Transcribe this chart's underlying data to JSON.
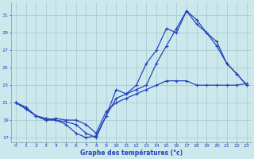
{
  "title": "Graphe des températures (°c)",
  "background_color": "#cde8ec",
  "grid_color": "#a8cdd4",
  "line_color": "#2244bb",
  "xlim": [
    -0.5,
    23.5
  ],
  "ylim": [
    16.5,
    32.5
  ],
  "yticks": [
    17,
    19,
    21,
    23,
    25,
    27,
    29,
    31
  ],
  "xticks": [
    0,
    1,
    2,
    3,
    4,
    5,
    6,
    7,
    8,
    9,
    10,
    11,
    12,
    13,
    14,
    15,
    16,
    17,
    18,
    19,
    20,
    21,
    22,
    23
  ],
  "line1_x": [
    0,
    1,
    2,
    3,
    4,
    5,
    6,
    7,
    8,
    9,
    10,
    11,
    12,
    13,
    14,
    15,
    16,
    17,
    18,
    19,
    20,
    21,
    22,
    23
  ],
  "line1_y": [
    21.0,
    20.3,
    19.5,
    19.0,
    19.0,
    18.5,
    17.5,
    17.0,
    17.2,
    19.5,
    22.5,
    22.0,
    23.0,
    25.5,
    27.0,
    29.5,
    29.0,
    31.5,
    30.5,
    29.0,
    27.5,
    25.5,
    24.3,
    23.0
  ],
  "line2_x": [
    0,
    1,
    2,
    3,
    4,
    5,
    6,
    7,
    8,
    9,
    10,
    11,
    12,
    13,
    14,
    15,
    16,
    17,
    18,
    19,
    20,
    21,
    22,
    23
  ],
  "line2_y": [
    21.0,
    20.3,
    19.5,
    19.2,
    19.0,
    18.8,
    18.5,
    17.5,
    17.0,
    19.5,
    21.5,
    22.0,
    22.5,
    23.0,
    25.5,
    27.5,
    29.5,
    31.5,
    30.0,
    29.0,
    28.0,
    25.5,
    24.3,
    23.0
  ],
  "line3_x": [
    0,
    1,
    2,
    3,
    4,
    5,
    6,
    7,
    8,
    9,
    10,
    11,
    12,
    13,
    14,
    15,
    16,
    17,
    18,
    19,
    20,
    21,
    22,
    23
  ],
  "line3_y": [
    21.0,
    20.5,
    19.5,
    19.0,
    19.2,
    19.0,
    19.0,
    18.5,
    17.5,
    20.0,
    21.0,
    21.5,
    22.0,
    22.5,
    23.0,
    23.5,
    23.5,
    23.5,
    23.0,
    23.0,
    23.0,
    23.0,
    23.0,
    23.2
  ]
}
